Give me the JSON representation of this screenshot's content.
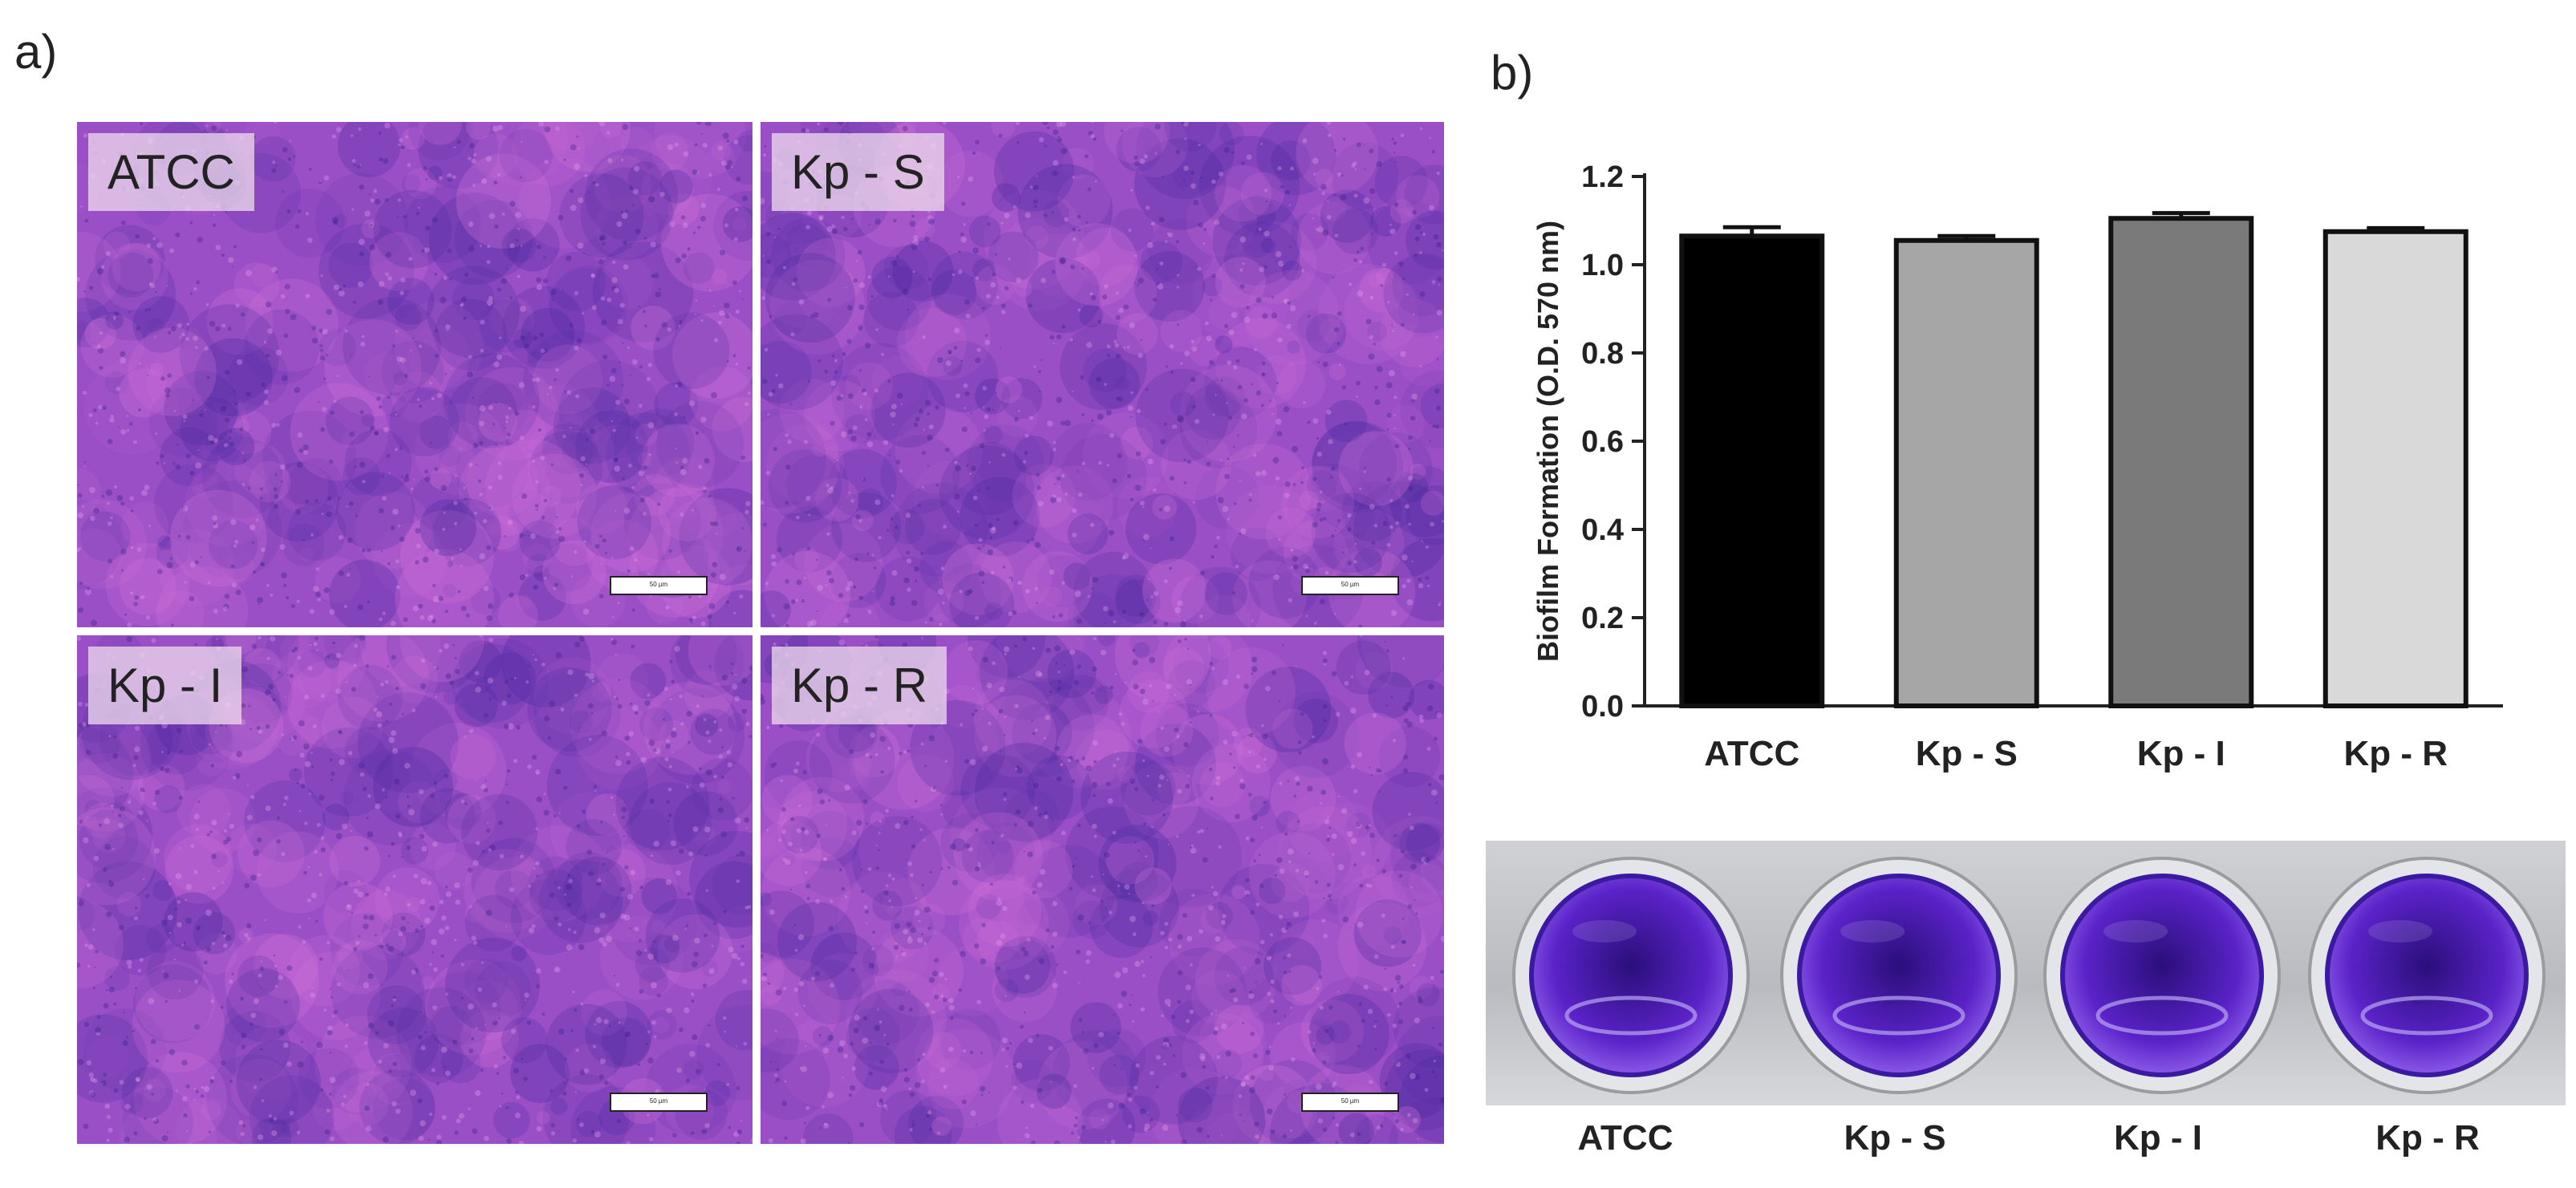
{
  "figure": {
    "panel_a_label": "a)",
    "panel_b_label": "b)"
  },
  "micrographs": [
    {
      "label": "ATCC",
      "scale_bar": "50 µm"
    },
    {
      "label": "Kp - S",
      "scale_bar": "50 µm"
    },
    {
      "label": "Kp - I",
      "scale_bar": "50 µm"
    },
    {
      "label": "Kp - R",
      "scale_bar": "50 µm"
    }
  ],
  "colors": {
    "stain_base": "#9a4fc6",
    "stain_dark": "#4a2aa0",
    "stain_light": "#d070d8"
  },
  "chart_data": {
    "type": "bar",
    "categories": [
      "ATCC",
      "Kp - S",
      "Kp - I",
      "Kp - R"
    ],
    "values": [
      1.065,
      1.055,
      1.105,
      1.075
    ],
    "errors": [
      0.02,
      0.01,
      0.012,
      0.008
    ],
    "bar_colors": [
      "#000000",
      "#a6a6a6",
      "#7a7a7a",
      "#d9d9d9"
    ],
    "ylabel": "Biofilm Formation (O.D. 570 nm)",
    "xlabel": "",
    "ylim": [
      0,
      1.2
    ],
    "yticks": [
      "0.0",
      "0.2",
      "0.4",
      "0.6",
      "0.8",
      "1.0",
      "1.2"
    ],
    "grid": false
  },
  "wells": {
    "labels": [
      "ATCC",
      "Kp - S",
      "Kp - I",
      "Kp - R"
    ],
    "color": "#5a22c8"
  }
}
